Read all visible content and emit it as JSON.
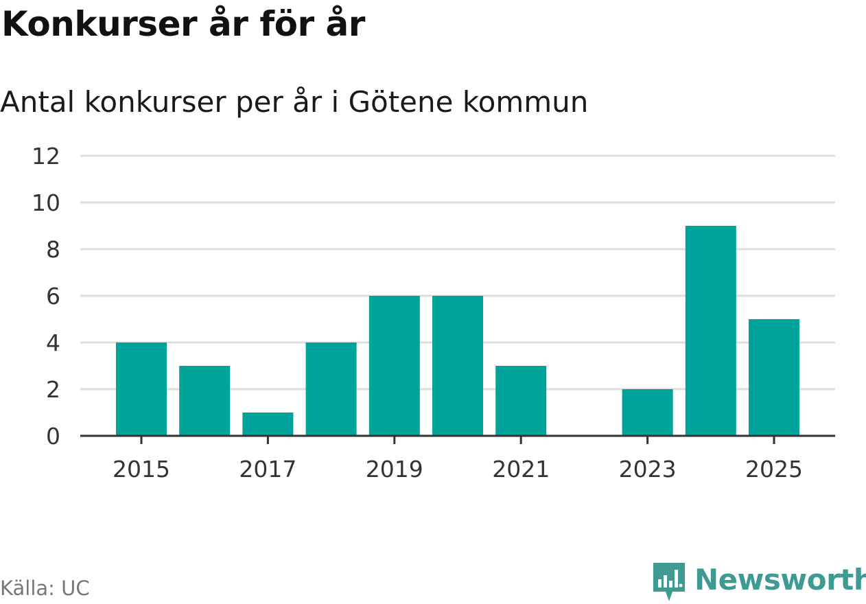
{
  "header": {
    "title": "Konkurser år för år",
    "subtitle": "Antal konkurser per år i Götene kommun"
  },
  "footer": {
    "source": "Källa: UC",
    "brand_name": "Newsworthy",
    "brand_icon": "newsworthy-logo-icon"
  },
  "colors": {
    "bar": "#00a39a",
    "grid": "#dddddd",
    "axis": "#333333",
    "brand": "#3e9a93"
  },
  "chart_data": {
    "type": "bar",
    "categories": [
      "2015",
      "2016",
      "2017",
      "2018",
      "2019",
      "2020",
      "2021",
      "2022",
      "2023",
      "2024",
      "2025"
    ],
    "values": [
      4,
      3,
      1,
      4,
      6,
      6,
      3,
      0,
      2,
      9,
      5
    ],
    "x_tick_labels": [
      "2015",
      "2017",
      "2019",
      "2021",
      "2023",
      "2025"
    ],
    "y_ticks": [
      0,
      2,
      4,
      6,
      8,
      10,
      12
    ],
    "ylim": [
      0,
      12
    ],
    "title": "Konkurser år för år",
    "subtitle": "Antal konkurser per år i Götene kommun",
    "xlabel": "",
    "ylabel": "",
    "grid": true
  }
}
